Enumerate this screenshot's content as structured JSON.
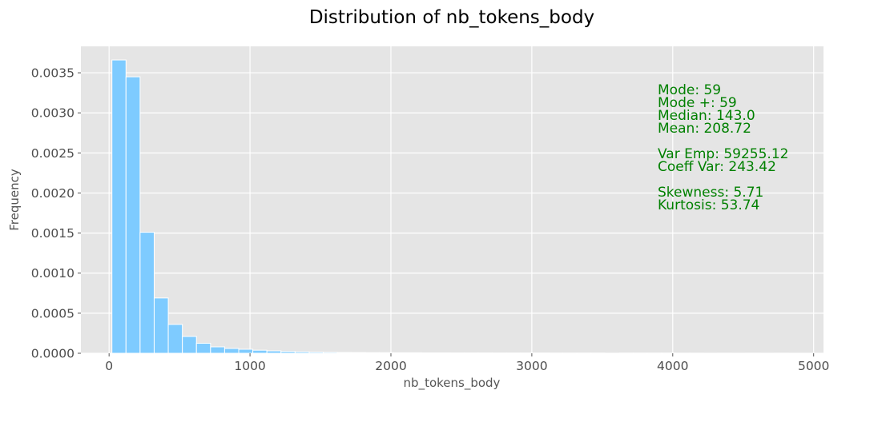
{
  "chart_data": {
    "type": "bar",
    "title": "Distribution of nb_tokens_body",
    "xlabel": "nb_tokens_body",
    "ylabel": "Frequency",
    "xlim": [
      -200,
      5070
    ],
    "ylim": [
      0,
      0.00383
    ],
    "x_ticks": [
      0,
      1000,
      2000,
      3000,
      4000,
      5000
    ],
    "x_tick_labels": [
      "0",
      "1000",
      "2000",
      "3000",
      "4000",
      "5000"
    ],
    "y_ticks": [
      0,
      0.0005,
      0.001,
      0.0015,
      0.002,
      0.0025,
      0.003,
      0.0035
    ],
    "y_tick_labels": [
      "0.0000",
      "0.0005",
      "0.0010",
      "0.0015",
      "0.0020",
      "0.0025",
      "0.0030",
      "0.0035"
    ],
    "grid": true,
    "bin_width": 100,
    "bin_starts": [
      20,
      120,
      220,
      320,
      420,
      520,
      620,
      720,
      820,
      920,
      1020,
      1120,
      1220,
      1320,
      1420,
      1520,
      1620,
      1720,
      1820,
      1920,
      2020,
      2120,
      2220,
      2320,
      2420,
      2520,
      2620,
      2720,
      2820,
      2920,
      3020,
      3120,
      3220,
      3320,
      3420,
      3620,
      3720,
      3820,
      3920,
      4020,
      4120,
      4320,
      4520,
      4720
    ],
    "values": [
      0.00366,
      0.00345,
      0.00151,
      0.00069,
      0.00036,
      0.00021,
      0.000125,
      8e-05,
      6e-05,
      5e-05,
      3.8e-05,
      3e-05,
      2.2e-05,
      1.8e-05,
      1.4e-05,
      1.2e-05,
      1e-05,
      9e-06,
      8e-06,
      7e-06,
      6e-06,
      6e-06,
      5e-06,
      5e-06,
      4e-06,
      4e-06,
      4e-06,
      3e-06,
      3e-06,
      3e-06,
      3e-06,
      2e-06,
      2e-06,
      2e-06,
      2e-06,
      2e-06,
      2e-06,
      2e-06,
      2e-06,
      1e-06,
      1e-06,
      1e-06,
      1e-06,
      1e-06
    ],
    "annotations": [
      "Mode: 59",
      "Mode +: 59",
      "Median: 143.0",
      "Mean: 208.72",
      "",
      "Var Emp: 59255.12",
      "Coeff Var: 243.42",
      "",
      "Skewness: 5.71",
      "Kurtosis: 53.74"
    ],
    "colors": {
      "bar": "#7ecbff",
      "plot_background": "#e5e5e5",
      "grid": "#ffffff",
      "annotation": "#008000"
    }
  }
}
